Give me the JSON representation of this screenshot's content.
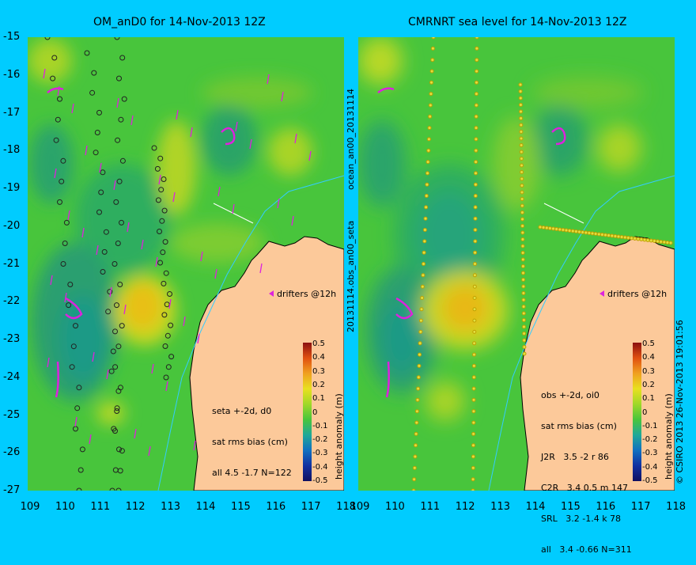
{
  "left_title": "OM_anD0 for 14-Nov-2013 12Z",
  "right_title": "CMRNRT sea level  for 14-Nov-2013 12Z",
  "y_ticks": [
    "-15",
    "-16",
    "-17",
    "-18",
    "-19",
    "-20",
    "-21",
    "-22",
    "-23",
    "-24",
    "-25",
    "-26",
    "-27"
  ],
  "x_ticks": [
    "109",
    "110",
    "111",
    "112",
    "113",
    "114",
    "115",
    "116",
    "117",
    "118"
  ],
  "center_label_top": "ocean_an00_20131114",
  "center_label_bottom": "20131114.obs_an00_seta",
  "drifters_label": "drifters @12h",
  "colorbar_label": "height anomaly (m)",
  "colorbar_ticks": [
    "0.5",
    "0.4",
    "0.3",
    "0.2",
    "0.1",
    "0",
    "-0.1",
    "-0.2",
    "-0.3",
    "-0.4",
    "-0.5"
  ],
  "left_stats": [
    "seta +-2d, d0",
    "sat rms bias (cm)",
    "all 4.5 -1.7 N=122"
  ],
  "right_stats": [
    "obs +-2d, oi0",
    "sat rms bias (cm)",
    "J2R   3.5 -2 r 86",
    "C2R   3.4 0.5 m 147",
    "SRL   3.2 -1.4 k 78",
    "all   3.4 -0.66 N=311"
  ],
  "copyright": "© CSIRO 2013   26-Nov-2013 19:01:56",
  "colors": {
    "background": "#00ccff",
    "land": "#fcc99a",
    "drifter": "#dd22dd"
  }
}
